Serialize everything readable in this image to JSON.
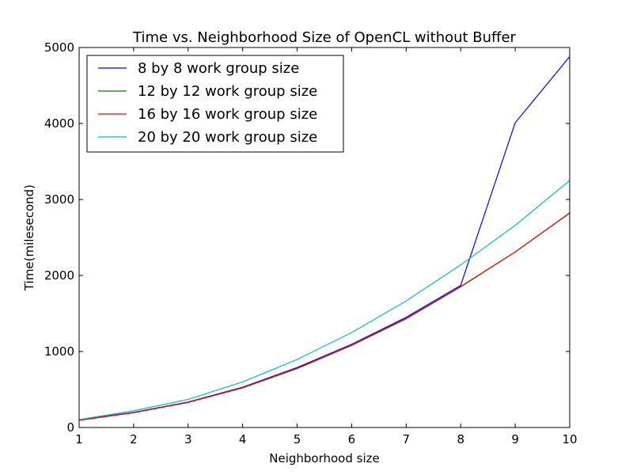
{
  "chart_data": {
    "type": "line",
    "title": "Time vs. Neighborhood Size of OpenCL without Buffer",
    "xlabel": "Neighborhood size",
    "ylabel": "Time(milesecond)",
    "x": [
      1,
      2,
      3,
      4,
      5,
      6,
      7,
      8,
      9,
      10
    ],
    "xlim": [
      1,
      10
    ],
    "ylim": [
      0,
      5000
    ],
    "xticks": [
      1,
      2,
      3,
      4,
      5,
      6,
      7,
      8,
      9,
      10
    ],
    "yticks": [
      0,
      1000,
      2000,
      3000,
      4000,
      5000
    ],
    "grid": false,
    "legend_position": "top-left",
    "series": [
      {
        "name": "8 by 8 work group size",
        "color": "#0000ff",
        "values": [
          100,
          200,
          335,
          530,
          790,
          1095,
          1450,
          1870,
          4010,
          4880
        ]
      },
      {
        "name": "12 by 12 work group size",
        "color": "#008000",
        "values": [
          95,
          195,
          330,
          520,
          775,
          1080,
          1430,
          1850,
          2310,
          2820
        ]
      },
      {
        "name": "16 by 16 work group size",
        "color": "#ff0000",
        "values": [
          95,
          195,
          330,
          525,
          780,
          1085,
          1435,
          1855,
          2310,
          2825
        ]
      },
      {
        "name": "20 by 20 work group size",
        "color": "#00bfbf",
        "values": [
          105,
          220,
          370,
          600,
          895,
          1250,
          1665,
          2140,
          2660,
          3250
        ]
      }
    ]
  }
}
